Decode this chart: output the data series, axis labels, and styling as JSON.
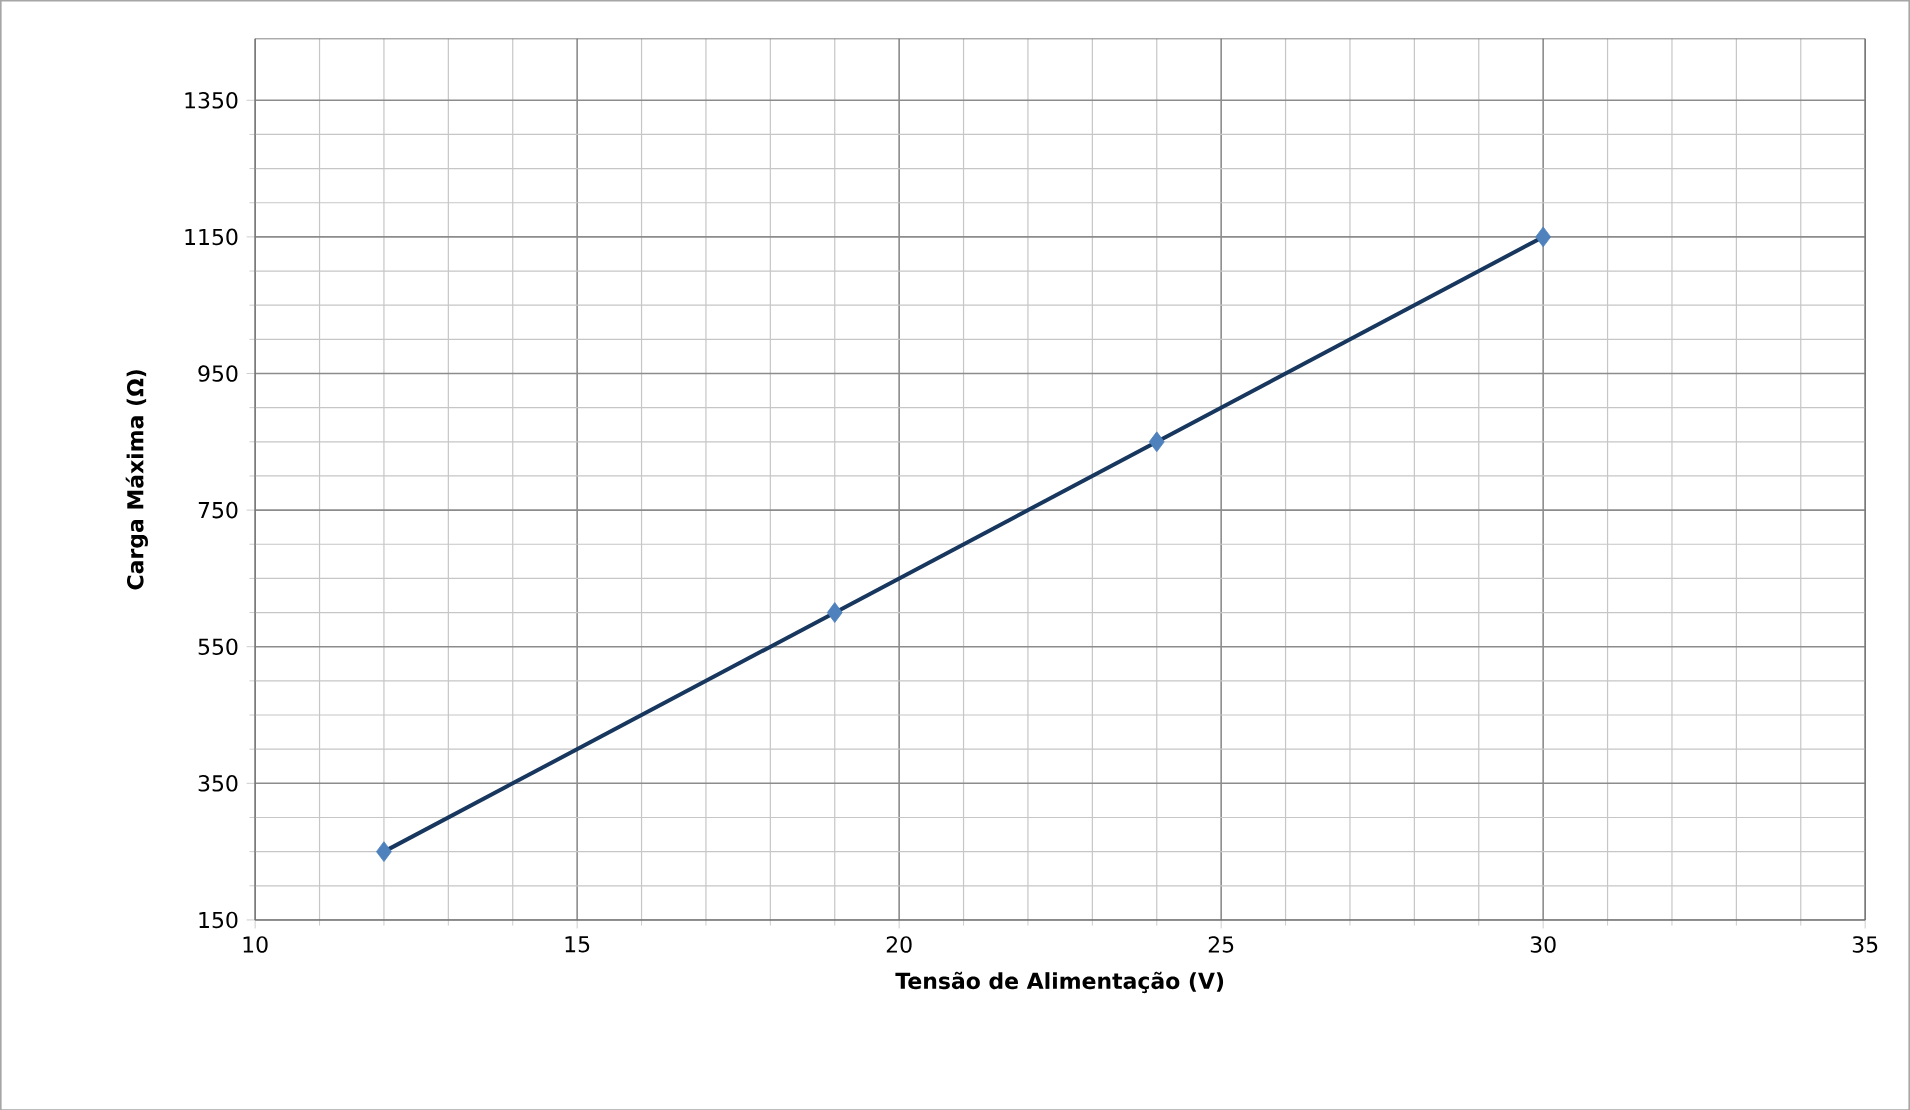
{
  "chart_data": {
    "type": "scatter",
    "xlabel": "Tensão de Alimentação (V)",
    "ylabel": "Carga Máxima (Ω)",
    "series": [
      {
        "color": "#4f81bd",
        "marker": "diamond",
        "x": [
          12,
          19,
          24,
          30
        ],
        "values": [
          250,
          600,
          850,
          1150
        ]
      },
      {
        "type": "line",
        "color": "#17375e",
        "marker": "none",
        "line_style": "solid",
        "x": [
          12,
          30
        ],
        "values": [
          250,
          1150
        ]
      }
    ],
    "xlim": [
      10,
      35
    ],
    "xticks": [
      10,
      15,
      20,
      25,
      30,
      35
    ],
    "ylim": [
      150,
      1440
    ],
    "yticks": [
      150,
      350,
      550,
      750,
      950,
      1150,
      1350
    ],
    "grid": true
  }
}
